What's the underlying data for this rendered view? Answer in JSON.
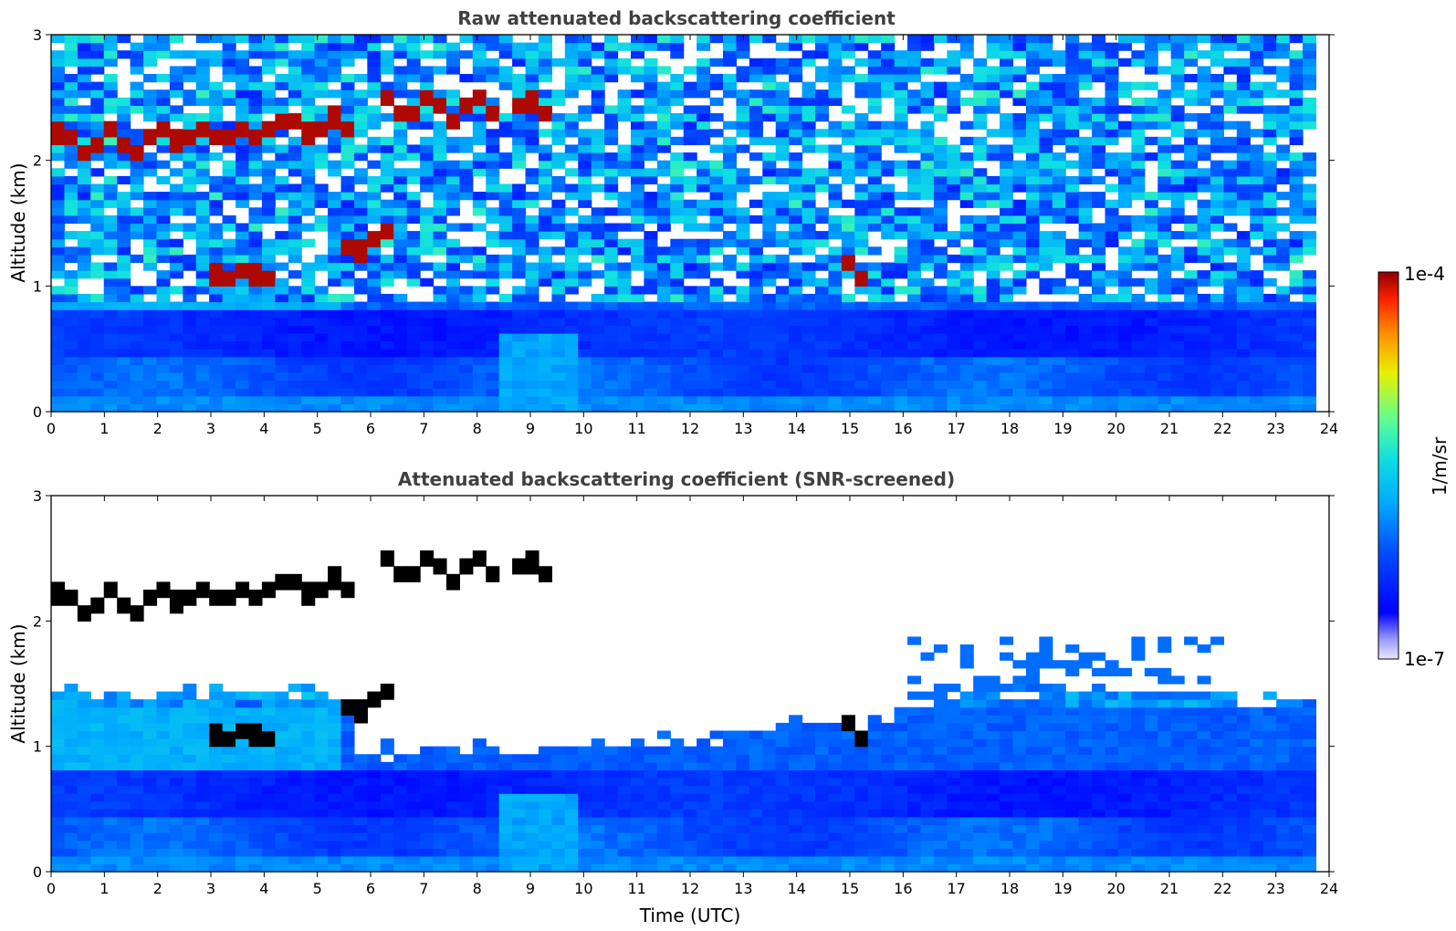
{
  "chart_data": [
    {
      "type": "heatmap",
      "title": "Raw attenuated backscattering coefficient",
      "xlabel": "",
      "ylabel": "Altitude (km)",
      "xlim": [
        0,
        24
      ],
      "ylim": [
        0,
        3
      ],
      "x_ticks": [
        "0",
        "1",
        "2",
        "3",
        "4",
        "5",
        "6",
        "7",
        "8",
        "9",
        "10",
        "11",
        "12",
        "13",
        "14",
        "15",
        "16",
        "17",
        "18",
        "19",
        "20",
        "21",
        "22",
        "23",
        "24"
      ],
      "y_ticks": [
        "0",
        "1",
        "2",
        "3"
      ],
      "colormap": "jet",
      "color_scale": "log",
      "data_extent_hours": [
        0,
        23.75
      ],
      "cloud_layers": [
        {
          "t_start": 0.0,
          "t_end": 2.0,
          "alt_km": 2.15,
          "note": "thick"
        },
        {
          "t_start": 2.0,
          "t_end": 4.0,
          "alt_km": 2.2
        },
        {
          "t_start": 4.0,
          "t_end": 5.6,
          "alt_km": 2.27
        },
        {
          "t_start": 6.3,
          "t_end": 8.4,
          "alt_km": 2.42
        },
        {
          "t_start": 8.65,
          "t_end": 8.85,
          "alt_km": 2.4
        },
        {
          "t_start": 9.0,
          "t_end": 9.45,
          "alt_km": 2.44
        },
        {
          "t_start": 5.5,
          "t_end": 6.4,
          "alt_km": 1.35
        },
        {
          "t_start": 3.0,
          "t_end": 4.1,
          "alt_km": 1.1
        },
        {
          "t_start": 14.8,
          "t_end": 15.4,
          "alt_km": 1.12
        }
      ]
    },
    {
      "type": "heatmap",
      "title": "Attenuated backscattering coefficient (SNR-screened)",
      "xlabel": "Time (UTC)",
      "ylabel": "Altitude (km)",
      "xlim": [
        0,
        24
      ],
      "ylim": [
        0,
        3
      ],
      "x_ticks": [
        "0",
        "1",
        "2",
        "3",
        "4",
        "5",
        "6",
        "7",
        "8",
        "9",
        "10",
        "11",
        "12",
        "13",
        "14",
        "15",
        "16",
        "17",
        "18",
        "19",
        "20",
        "21",
        "22",
        "23",
        "24"
      ],
      "y_ticks": [
        "0",
        "1",
        "2",
        "3"
      ],
      "colormap": "jet",
      "color_scale": "log",
      "data_extent_hours": [
        0,
        23.75
      ],
      "screened_out_color": "#ffffff",
      "saturated_color": "#000000"
    }
  ],
  "colorbar": {
    "max_label": "1e-4",
    "min_label": "1e-7",
    "unit_label": "1/m/sr",
    "min_value": 1e-07,
    "max_value": 0.0001
  }
}
